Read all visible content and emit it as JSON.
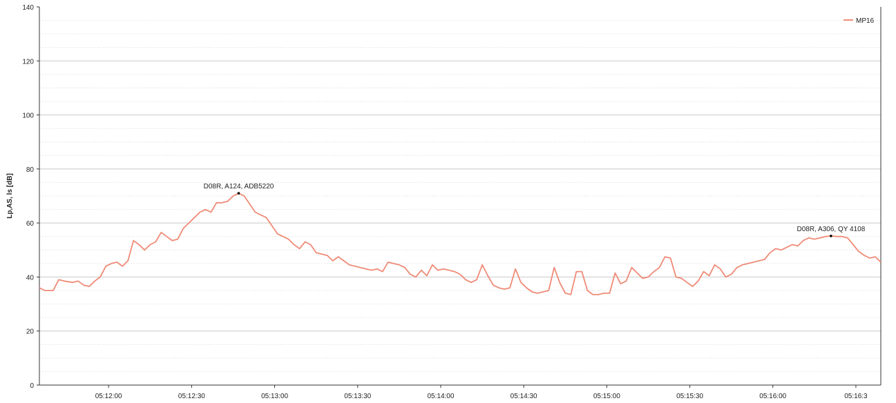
{
  "chart_data": {
    "type": "line",
    "title": "",
    "xlabel": "",
    "ylabel": "Lp,AS, ls [dB]",
    "ylim": [
      0,
      140
    ],
    "yticks": [
      0,
      20,
      40,
      60,
      80,
      100,
      120,
      140
    ],
    "x_range": [
      "05:11:35",
      "05:16:39"
    ],
    "xticks": [
      "05:12:00",
      "05:12:30",
      "05:13:00",
      "05:13:30",
      "05:14:00",
      "05:14:30",
      "05:15:00",
      "05:15:30",
      "05:16:00",
      "05:16:3"
    ],
    "grid": true,
    "legend": "top-right",
    "colors": {
      "series": "#ef8a76",
      "axis": "#333333",
      "grid_major": "#c8c8c8",
      "grid_minor": "#e6e6e6"
    },
    "series": [
      {
        "name": "MP16",
        "points": [
          [
            "05:11:35",
            36
          ],
          [
            "05:11:37",
            35
          ],
          [
            "05:11:40",
            35
          ],
          [
            "05:11:42",
            39
          ],
          [
            "05:11:44",
            38.5
          ],
          [
            "05:11:47",
            38
          ],
          [
            "05:11:49",
            38.5
          ],
          [
            "05:11:51",
            37
          ],
          [
            "05:11:53",
            36.5
          ],
          [
            "05:11:55",
            38.5
          ],
          [
            "05:11:57",
            40
          ],
          [
            "05:11:59",
            44
          ],
          [
            "05:12:01",
            45
          ],
          [
            "05:12:03",
            45.5
          ],
          [
            "05:12:05",
            44
          ],
          [
            "05:12:07",
            46
          ],
          [
            "05:12:09",
            53.5
          ],
          [
            "05:12:11",
            52
          ],
          [
            "05:12:13",
            50
          ],
          [
            "05:12:15",
            52
          ],
          [
            "05:12:17",
            53
          ],
          [
            "05:12:19",
            56.5
          ],
          [
            "05:12:21",
            55
          ],
          [
            "05:12:23",
            53.5
          ],
          [
            "05:12:25",
            54
          ],
          [
            "05:12:27",
            58
          ],
          [
            "05:12:29",
            60
          ],
          [
            "05:12:31",
            62
          ],
          [
            "05:12:33",
            64
          ],
          [
            "05:12:35",
            65
          ],
          [
            "05:12:37",
            64
          ],
          [
            "05:12:39",
            67.5
          ],
          [
            "05:12:41",
            67.5
          ],
          [
            "05:12:43",
            68
          ],
          [
            "05:12:45",
            70
          ],
          [
            "05:12:47",
            71
          ],
          [
            "05:12:49",
            70
          ],
          [
            "05:12:51",
            67
          ],
          [
            "05:12:53",
            64
          ],
          [
            "05:12:55",
            63
          ],
          [
            "05:12:57",
            62
          ],
          [
            "05:12:59",
            59
          ],
          [
            "05:13:01",
            56
          ],
          [
            "05:13:03",
            55
          ],
          [
            "05:13:05",
            54
          ],
          [
            "05:13:07",
            52
          ],
          [
            "05:13:09",
            50.5
          ],
          [
            "05:13:11",
            53
          ],
          [
            "05:13:13",
            52
          ],
          [
            "05:13:15",
            49
          ],
          [
            "05:13:17",
            48.5
          ],
          [
            "05:13:19",
            48
          ],
          [
            "05:13:21",
            46
          ],
          [
            "05:13:23",
            47.5
          ],
          [
            "05:13:25",
            46
          ],
          [
            "05:13:27",
            44.5
          ],
          [
            "05:13:29",
            44
          ],
          [
            "05:13:31",
            43.5
          ],
          [
            "05:13:33",
            43
          ],
          [
            "05:13:35",
            42.5
          ],
          [
            "05:13:37",
            43
          ],
          [
            "05:13:39",
            42
          ],
          [
            "05:13:41",
            45.5
          ],
          [
            "05:13:43",
            45
          ],
          [
            "05:13:45",
            44.5
          ],
          [
            "05:13:47",
            43.5
          ],
          [
            "05:13:49",
            41
          ],
          [
            "05:13:51",
            40
          ],
          [
            "05:13:53",
            42.5
          ],
          [
            "05:13:55",
            40.5
          ],
          [
            "05:13:57",
            44.5
          ],
          [
            "05:13:59",
            42.5
          ],
          [
            "05:14:01",
            43
          ],
          [
            "05:14:03",
            42.5
          ],
          [
            "05:14:05",
            42
          ],
          [
            "05:14:07",
            41
          ],
          [
            "05:14:09",
            39
          ],
          [
            "05:14:11",
            38
          ],
          [
            "05:14:13",
            39
          ],
          [
            "05:14:15",
            44.5
          ],
          [
            "05:14:17",
            40.5
          ],
          [
            "05:14:19",
            37
          ],
          [
            "05:14:21",
            36
          ],
          [
            "05:14:23",
            35.5
          ],
          [
            "05:14:25",
            36
          ],
          [
            "05:14:27",
            43
          ],
          [
            "05:14:29",
            38
          ],
          [
            "05:14:31",
            36
          ],
          [
            "05:14:33",
            34.5
          ],
          [
            "05:14:35",
            34
          ],
          [
            "05:14:37",
            34.5
          ],
          [
            "05:14:39",
            35
          ],
          [
            "05:14:41",
            43.5
          ],
          [
            "05:14:43",
            38
          ],
          [
            "05:14:45",
            34
          ],
          [
            "05:14:47",
            33.5
          ],
          [
            "05:14:49",
            42
          ],
          [
            "05:14:51",
            42
          ],
          [
            "05:14:53",
            35
          ],
          [
            "05:14:55",
            33.5
          ],
          [
            "05:14:57",
            33.5
          ],
          [
            "05:14:59",
            34
          ],
          [
            "05:15:01",
            34
          ],
          [
            "05:15:03",
            41.5
          ],
          [
            "05:15:05",
            37.5
          ],
          [
            "05:15:07",
            38.5
          ],
          [
            "05:15:09",
            43.5
          ],
          [
            "05:15:11",
            41.5
          ],
          [
            "05:15:13",
            39.5
          ],
          [
            "05:15:15",
            40
          ],
          [
            "05:15:17",
            42
          ],
          [
            "05:15:19",
            43.5
          ],
          [
            "05:15:21",
            47.5
          ],
          [
            "05:15:23",
            47
          ],
          [
            "05:15:25",
            40
          ],
          [
            "05:15:27",
            39.5
          ],
          [
            "05:15:29",
            38
          ],
          [
            "05:15:31",
            36.5
          ],
          [
            "05:15:33",
            38.5
          ],
          [
            "05:15:35",
            42
          ],
          [
            "05:15:37",
            40.5
          ],
          [
            "05:15:39",
            44.5
          ],
          [
            "05:15:41",
            43
          ],
          [
            "05:15:43",
            40
          ],
          [
            "05:15:45",
            41
          ],
          [
            "05:15:47",
            43.5
          ],
          [
            "05:15:49",
            44.5
          ],
          [
            "05:15:51",
            45
          ],
          [
            "05:15:53",
            45.5
          ],
          [
            "05:15:55",
            46
          ],
          [
            "05:15:57",
            46.5
          ],
          [
            "05:15:59",
            49
          ],
          [
            "05:16:01",
            50.5
          ],
          [
            "05:16:03",
            50
          ],
          [
            "05:16:05",
            51
          ],
          [
            "05:16:07",
            52
          ],
          [
            "05:16:09",
            51.5
          ],
          [
            "05:16:11",
            53.5
          ],
          [
            "05:16:13",
            54.5
          ],
          [
            "05:16:15",
            54
          ],
          [
            "05:16:17",
            54.5
          ],
          [
            "05:16:19",
            55
          ],
          [
            "05:16:21",
            55.2
          ],
          [
            "05:16:23",
            55
          ],
          [
            "05:16:25",
            55
          ],
          [
            "05:16:27",
            54.5
          ],
          [
            "05:16:29",
            52
          ],
          [
            "05:16:31",
            49.5
          ],
          [
            "05:16:33",
            48
          ],
          [
            "05:16:35",
            47
          ],
          [
            "05:16:37",
            47.5
          ],
          [
            "05:16:39",
            45.5
          ]
        ]
      }
    ],
    "annotations": [
      {
        "text": "D08R, A124, ADB5220",
        "x": "05:12:47",
        "y": 71
      },
      {
        "text": "D08R, A306, QY 4108",
        "x": "05:16:21",
        "y": 55.2
      }
    ]
  }
}
